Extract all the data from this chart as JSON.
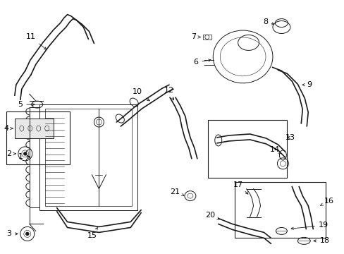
{
  "bg_color": "#ffffff",
  "line_color": "#1a1a1a",
  "fig_width": 4.89,
  "fig_height": 3.6,
  "dpi": 100,
  "label_fontsize": 8
}
